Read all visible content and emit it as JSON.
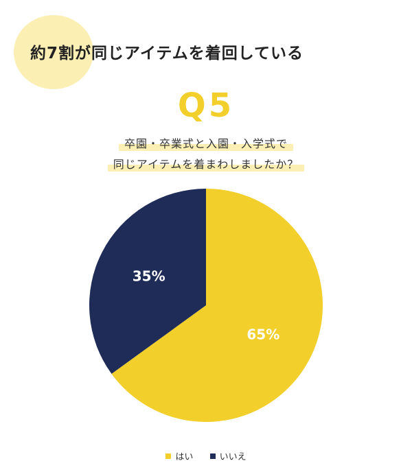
{
  "headline": "約7割が同じアイテムを着回している",
  "question": {
    "number": "Q5",
    "line1": "卒園・卒業式と入園・入学式で",
    "line2": "同じアイテムを着まわしましたか？"
  },
  "colors": {
    "yes": "#f2cf2a",
    "no": "#1f2c58",
    "accent_light": "#fbefb4"
  },
  "chart_data": {
    "type": "pie",
    "categories": [
      "はい",
      "いいえ"
    ],
    "values": [
      65,
      35
    ],
    "labels": [
      "65%",
      "35%"
    ],
    "legend_position": "bottom"
  }
}
